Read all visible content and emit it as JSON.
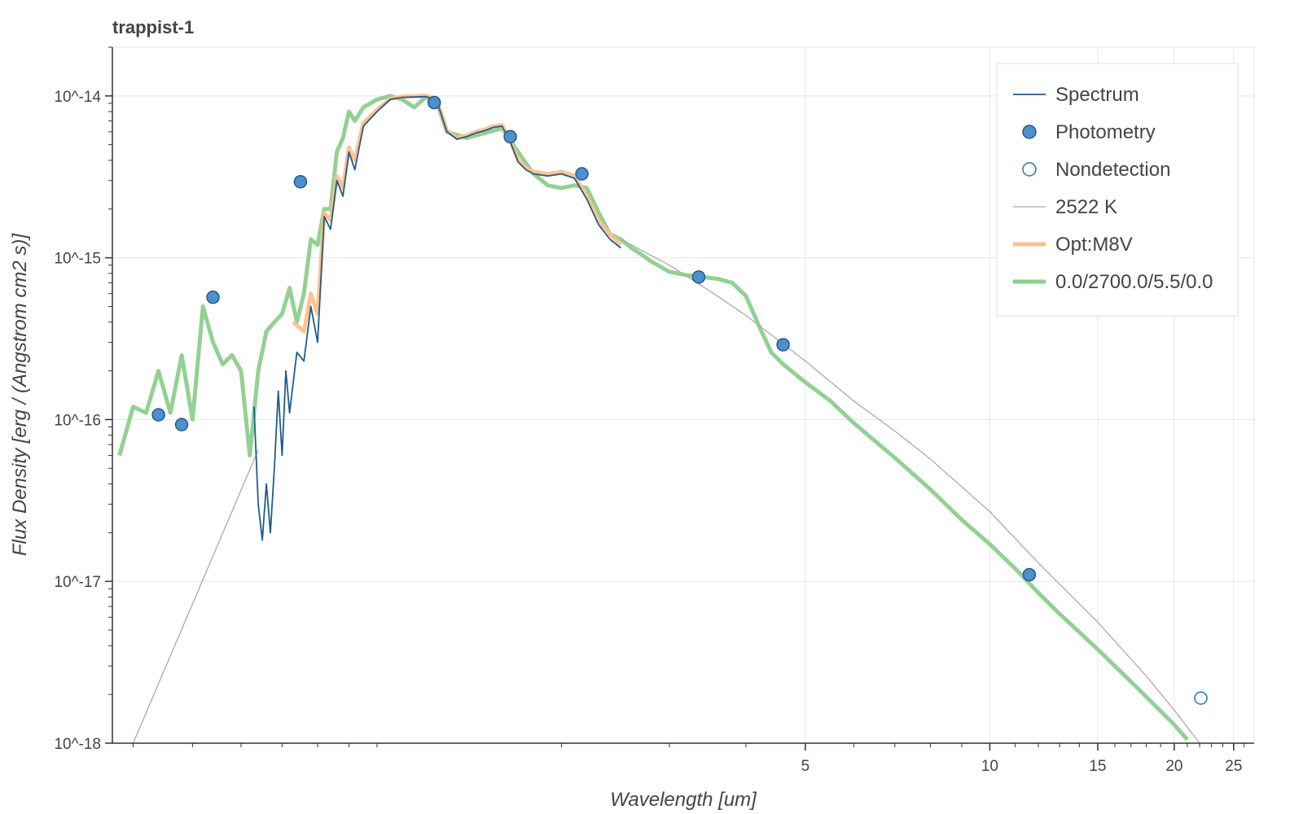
{
  "chart_data": {
    "type": "line",
    "title": "trappist-1",
    "xlabel": "Wavelength [um]",
    "ylabel": "Flux Density [erg / (Angstrom cm2 s)]",
    "x_scale": "log",
    "y_scale": "log",
    "xlim": [
      0.37,
      27
    ],
    "ylim": [
      1e-18,
      2e-14
    ],
    "grid": true,
    "legend_position": "top-right",
    "x_tick_labels": [
      {
        "value": 5,
        "label": "5"
      },
      {
        "value": 10,
        "label": "10"
      },
      {
        "value": 15,
        "label": "15"
      },
      {
        "value": 20,
        "label": "20"
      },
      {
        "value": 25,
        "label": "25"
      }
    ],
    "y_tick_labels": [
      {
        "value": 1e-14,
        "label": "10^-14"
      },
      {
        "value": 1e-15,
        "label": "10^-15"
      },
      {
        "value": 1e-16,
        "label": "10^-16"
      },
      {
        "value": 1e-17,
        "label": "10^-17"
      },
      {
        "value": 1e-18,
        "label": "10^-18"
      }
    ],
    "legend": [
      {
        "label": "Spectrum",
        "color": "#1f5c8f",
        "kind": "line"
      },
      {
        "label": "Photometry",
        "color": "#3a7fbf",
        "kind": "filled-circle"
      },
      {
        "label": "Nondetection",
        "color": "#1f77b4",
        "kind": "open-circle"
      },
      {
        "label": "2522 K",
        "color": "#aaaaaa",
        "kind": "thin-line"
      },
      {
        "label": "Opt:M8V",
        "color": "#fdbf86",
        "kind": "thick-line"
      },
      {
        "label": "0.0/2700.0/5.5/0.0",
        "color": "#8ccf8c",
        "kind": "thick-line"
      }
    ],
    "series": [
      {
        "name": "Spectrum",
        "color": "#1f5c8f",
        "x": [
          0.63,
          0.64,
          0.65,
          0.66,
          0.67,
          0.68,
          0.69,
          0.7,
          0.71,
          0.72,
          0.74,
          0.76,
          0.78,
          0.8,
          0.82,
          0.84,
          0.86,
          0.88,
          0.9,
          0.92,
          0.95,
          1.0,
          1.05,
          1.1,
          1.2,
          1.25,
          1.3,
          1.35,
          1.4,
          1.45,
          1.5,
          1.55,
          1.6,
          1.65,
          1.7,
          1.75,
          1.8,
          1.9,
          2.0,
          2.1,
          2.2,
          2.3,
          2.4,
          2.5
        ],
        "y": [
          1.2e-16,
          3e-17,
          1.8e-17,
          4e-17,
          2e-17,
          5e-17,
          1.5e-16,
          6e-17,
          2e-16,
          1.1e-16,
          2.6e-16,
          2.3e-16,
          5e-16,
          3e-16,
          1.8e-15,
          1.5e-15,
          3e-15,
          2.4e-15,
          4.5e-15,
          3.5e-15,
          6.5e-15,
          8e-15,
          9.5e-15,
          9.8e-15,
          9.9e-15,
          9.5e-15,
          6e-15,
          5.4e-15,
          5.6e-15,
          5.9e-15,
          6.1e-15,
          6.4e-15,
          6.5e-15,
          5.2e-15,
          3.9e-15,
          3.5e-15,
          3.3e-15,
          3.2e-15,
          3.3e-15,
          3.1e-15,
          2.3e-15,
          1.6e-15,
          1.3e-15,
          1.15e-15
        ]
      },
      {
        "name": "Opt:M8V",
        "color": "#fdbf86",
        "x": [
          0.73,
          0.76,
          0.78,
          0.8,
          0.82,
          0.84,
          0.86,
          0.88,
          0.9,
          0.92,
          0.95,
          1.0,
          1.05,
          1.1,
          1.2,
          1.25,
          1.3,
          1.35,
          1.4,
          1.45,
          1.5,
          1.55,
          1.6,
          1.65,
          1.7,
          1.75,
          1.8,
          1.9,
          2.0,
          2.1,
          2.2,
          2.3,
          2.4,
          2.5
        ],
        "y": [
          4e-16,
          3.5e-16,
          6e-16,
          4.5e-16,
          1.9e-15,
          1.7e-15,
          3.2e-15,
          2.7e-15,
          4.8e-15,
          4e-15,
          6.8e-15,
          8.2e-15,
          9.6e-15,
          9.9e-15,
          1e-14,
          9.6e-15,
          6.1e-15,
          5.5e-15,
          5.7e-15,
          6e-15,
          6.2e-15,
          6.5e-15,
          6.6e-15,
          5.3e-15,
          4e-15,
          3.6e-15,
          3.4e-15,
          3.3e-15,
          3.4e-15,
          3.2e-15,
          2.4e-15,
          1.7e-15,
          1.4e-15,
          1.2e-15
        ]
      },
      {
        "name": "0.0/2700.0/5.5/0.0",
        "color": "#8ccf8c",
        "x": [
          0.38,
          0.4,
          0.42,
          0.44,
          0.46,
          0.48,
          0.5,
          0.52,
          0.54,
          0.56,
          0.58,
          0.6,
          0.62,
          0.64,
          0.66,
          0.68,
          0.7,
          0.72,
          0.74,
          0.76,
          0.78,
          0.8,
          0.82,
          0.84,
          0.86,
          0.88,
          0.9,
          0.92,
          0.95,
          1.0,
          1.05,
          1.1,
          1.15,
          1.2,
          1.25,
          1.3,
          1.4,
          1.5,
          1.6,
          1.7,
          1.8,
          1.9,
          2.0,
          2.1,
          2.2,
          2.3,
          2.4,
          2.5,
          2.6,
          2.7,
          2.8,
          3.0,
          3.2,
          3.4,
          3.6,
          3.8,
          4.0,
          4.2,
          4.4,
          4.6,
          5.0,
          5.5,
          6.0,
          7.0,
          8.0,
          9.0,
          10.0,
          11.0,
          12.0,
          13.0,
          15.0,
          17.0,
          20.0,
          21.0
        ],
        "y": [
          6e-17,
          1.2e-16,
          1.1e-16,
          2e-16,
          1.1e-16,
          2.5e-16,
          1e-16,
          5e-16,
          3e-16,
          2.2e-16,
          2.5e-16,
          2e-16,
          6e-17,
          2e-16,
          3.5e-16,
          4e-16,
          4.5e-16,
          6.5e-16,
          4e-16,
          6e-16,
          1.3e-15,
          1.2e-15,
          2e-15,
          2e-15,
          4.5e-15,
          5.5e-15,
          8e-15,
          7e-15,
          8.5e-15,
          9.5e-15,
          1e-14,
          9.5e-15,
          8.5e-15,
          9.8e-15,
          9.3e-15,
          6e-15,
          5.5e-15,
          5.9e-15,
          6.3e-15,
          4.5e-15,
          3.3e-15,
          2.8e-15,
          2.7e-15,
          2.8e-15,
          2.7e-15,
          1.9e-15,
          1.4e-15,
          1.3e-15,
          1.15e-15,
          1.05e-15,
          9.5e-16,
          8.2e-16,
          7.8e-16,
          7.6e-16,
          7.4e-16,
          7e-16,
          5.8e-16,
          3.8e-16,
          2.6e-16,
          2.2e-16,
          1.7e-16,
          1.3e-16,
          9.5e-17,
          5.8e-17,
          3.7e-17,
          2.4e-17,
          1.7e-17,
          1.2e-17,
          8.5e-18,
          6.3e-18,
          3.8e-18,
          2.4e-18,
          1.3e-18,
          1.05e-18
        ]
      },
      {
        "name": "2522 K",
        "color": "#aaaaaa",
        "segments": [
          {
            "x": [
              0.4,
              0.64
            ],
            "y": [
              1e-18,
              6.5e-17
            ]
          },
          {
            "x": [
              2.5,
              3.0,
              3.5,
              4.0,
              5.0,
              6.0,
              7.0,
              8.0,
              10.0,
              12.0,
              15.0,
              18.0,
              20.0,
              22.0
            ],
            "y": [
              1.3e-15,
              9e-16,
              6.2e-16,
              4.4e-16,
              2.3e-16,
              1.3e-16,
              8.5e-17,
              5.7e-17,
              2.7e-17,
              1.3e-17,
              5.6e-18,
              2.6e-18,
              1.6e-18,
              1e-18
            ]
          }
        ]
      }
    ],
    "photometry": {
      "x": [
        0.44,
        0.48,
        0.54,
        0.75,
        1.24,
        1.65,
        2.16,
        3.35,
        4.6,
        11.6
      ],
      "y": [
        1.07e-16,
        9.3e-17,
        5.7e-16,
        2.95e-15,
        9.1e-15,
        5.6e-15,
        3.3e-15,
        7.6e-16,
        2.9e-16,
        1.1e-17
      ]
    },
    "nondetection": {
      "x": [
        22.1
      ],
      "y": [
        1.9e-18
      ]
    }
  }
}
